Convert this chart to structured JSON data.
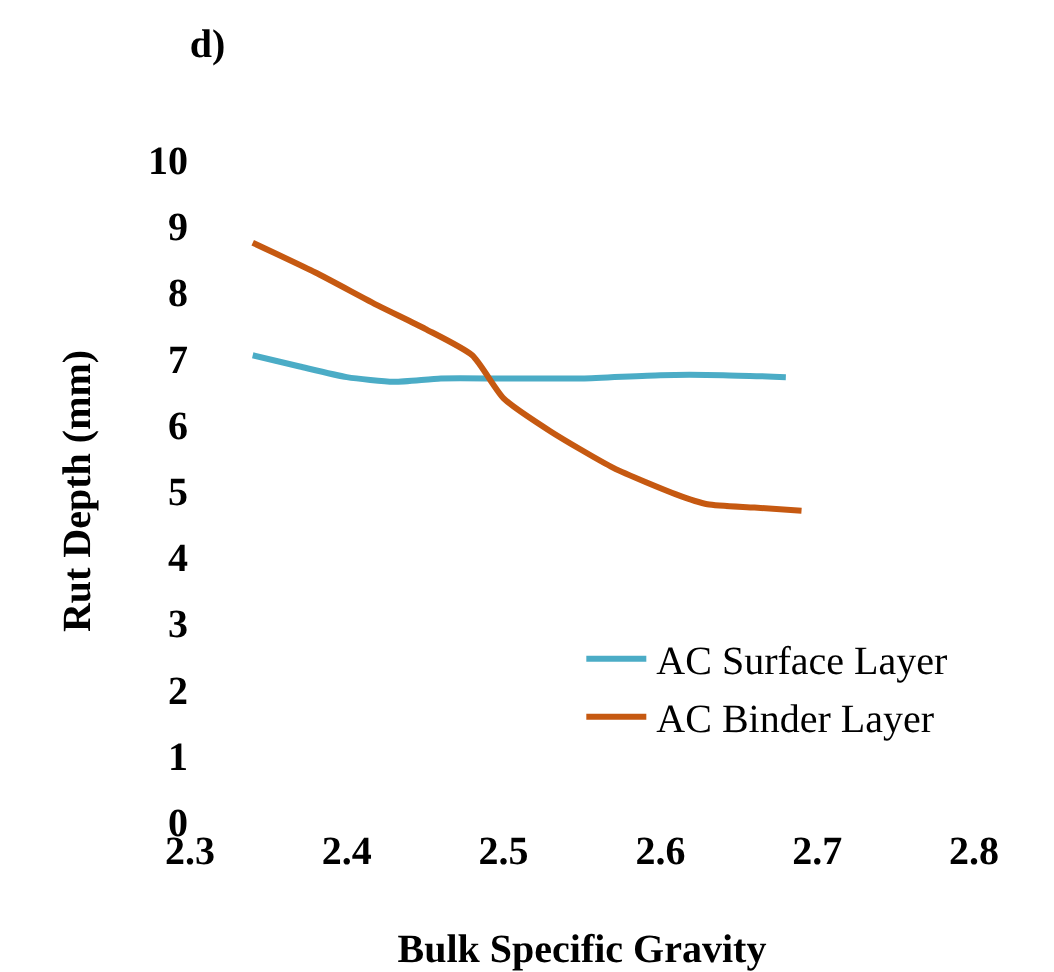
{
  "chart_data": {
    "type": "line",
    "title": "d)",
    "xlabel": "Bulk Specific Gravity",
    "ylabel": "Rut Depth (mm)",
    "xlim": [
      2.3,
      2.8
    ],
    "xticks": [
      2.3,
      2.4,
      2.5,
      2.6,
      2.7,
      2.8
    ],
    "ylim": [
      0,
      10
    ],
    "yticks": [
      0,
      1,
      2,
      3,
      4,
      5,
      6,
      7,
      8,
      9,
      10
    ],
    "grid": false,
    "legend": "bottom right",
    "marker": "none",
    "line_style": "solid",
    "series": [
      {
        "name": "AC Surface Layer",
        "color": "#4bacc6",
        "x": [
          2.34,
          2.37,
          2.4,
          2.43,
          2.46,
          2.5,
          2.55,
          2.6,
          2.64,
          2.68
        ],
        "values": [
          7.05,
          6.88,
          6.72,
          6.65,
          6.7,
          6.7,
          6.7,
          6.75,
          6.75,
          6.72
        ]
      },
      {
        "name": "AC Binder Layer",
        "color": "#c65911",
        "x": [
          2.34,
          2.38,
          2.42,
          2.45,
          2.48,
          2.5,
          2.53,
          2.57,
          2.61,
          2.63,
          2.66,
          2.69
        ],
        "values": [
          8.75,
          8.3,
          7.8,
          7.45,
          7.05,
          6.4,
          5.9,
          5.35,
          4.95,
          4.8,
          4.75,
          4.7
        ]
      }
    ]
  }
}
